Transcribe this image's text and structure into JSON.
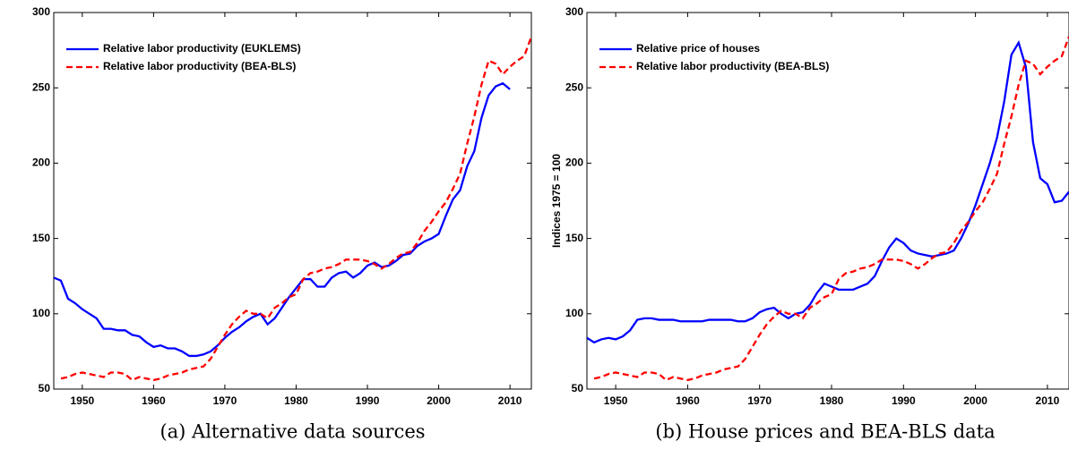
{
  "chart_data": [
    {
      "type": "line",
      "caption": "(a)  Alternative data sources",
      "x": [
        1946,
        1947,
        1948,
        1949,
        1950,
        1951,
        1952,
        1953,
        1954,
        1955,
        1956,
        1957,
        1958,
        1959,
        1960,
        1961,
        1962,
        1963,
        1964,
        1965,
        1966,
        1967,
        1968,
        1969,
        1970,
        1971,
        1972,
        1973,
        1974,
        1975,
        1976,
        1977,
        1978,
        1979,
        1980,
        1981,
        1982,
        1983,
        1984,
        1985,
        1986,
        1987,
        1988,
        1989,
        1990,
        1991,
        1992,
        1993,
        1994,
        1995,
        1996,
        1997,
        1998,
        1999,
        2000,
        2001,
        2002,
        2003,
        2004,
        2005,
        2006,
        2007,
        2008,
        2009,
        2010,
        2011,
        2012,
        2013
      ],
      "series": [
        {
          "name": "Relative labor productivity (EUKLEMS)",
          "color": "#0000ff",
          "dash": false,
          "values": [
            124,
            122,
            110,
            107,
            103,
            100,
            97,
            90,
            90,
            89,
            89,
            86,
            85,
            81,
            78,
            79,
            77,
            77,
            75,
            72,
            72,
            73,
            75,
            79,
            84,
            88,
            91,
            95,
            98,
            100,
            93,
            97,
            104,
            111,
            117,
            123,
            123,
            118,
            118,
            124,
            127,
            128,
            124,
            127,
            132,
            134,
            131,
            132,
            135,
            139,
            140,
            145,
            148,
            150,
            153,
            165,
            176,
            182,
            198,
            208,
            230,
            245,
            251,
            253,
            249,
            null,
            null,
            null
          ]
        },
        {
          "name": "Relative labor productivity (BEA-BLS)",
          "color": "#ff0000",
          "dash": true,
          "values": [
            null,
            57,
            58,
            60,
            61,
            60,
            59,
            58,
            61,
            61,
            60,
            56,
            58,
            57,
            56,
            57,
            59,
            60,
            61,
            63,
            64,
            65,
            70,
            78,
            86,
            93,
            98,
            102,
            100,
            100,
            97,
            104,
            107,
            111,
            113,
            123,
            127,
            128,
            130,
            131,
            133,
            136,
            136,
            136,
            135,
            133,
            130,
            133,
            137,
            140,
            141,
            147,
            155,
            161,
            168,
            174,
            183,
            193,
            213,
            231,
            252,
            268,
            266,
            259,
            264,
            268,
            271,
            284
          ]
        }
      ],
      "xlim": [
        1946,
        2013
      ],
      "ylim": [
        50,
        300
      ],
      "xticks": [
        1950,
        1960,
        1970,
        1980,
        1990,
        2000,
        2010
      ],
      "yticks": [
        50,
        100,
        150,
        200,
        250,
        300
      ]
    },
    {
      "type": "line",
      "caption": "(b)  House prices and BEA-BLS data",
      "ylabel": "Indices 1975 = 100",
      "x": [
        1946,
        1947,
        1948,
        1949,
        1950,
        1951,
        1952,
        1953,
        1954,
        1955,
        1956,
        1957,
        1958,
        1959,
        1960,
        1961,
        1962,
        1963,
        1964,
        1965,
        1966,
        1967,
        1968,
        1969,
        1970,
        1971,
        1972,
        1973,
        1974,
        1975,
        1976,
        1977,
        1978,
        1979,
        1980,
        1981,
        1982,
        1983,
        1984,
        1985,
        1986,
        1987,
        1988,
        1989,
        1990,
        1991,
        1992,
        1993,
        1994,
        1995,
        1996,
        1997,
        1998,
        1999,
        2000,
        2001,
        2002,
        2003,
        2004,
        2005,
        2006,
        2007,
        2008,
        2009,
        2010,
        2011,
        2012,
        2013
      ],
      "series": [
        {
          "name": "Relative price of houses",
          "color": "#0000ff",
          "dash": false,
          "values": [
            84,
            81,
            83,
            84,
            83,
            85,
            89,
            96,
            97,
            97,
            96,
            96,
            96,
            95,
            95,
            95,
            95,
            96,
            96,
            96,
            96,
            95,
            95,
            97,
            101,
            103,
            104,
            100,
            97,
            100,
            101,
            106,
            114,
            120,
            118,
            116,
            116,
            116,
            118,
            120,
            125,
            135,
            144,
            150,
            147,
            142,
            140,
            139,
            138,
            139,
            140,
            142,
            150,
            160,
            172,
            186,
            200,
            217,
            241,
            272,
            280,
            264,
            214,
            190,
            186,
            174,
            175,
            181
          ]
        },
        {
          "name": "Relative labor productivity (BEA-BLS)",
          "color": "#ff0000",
          "dash": true,
          "values": [
            null,
            57,
            58,
            60,
            61,
            60,
            59,
            58,
            61,
            61,
            60,
            56,
            58,
            57,
            56,
            57,
            59,
            60,
            61,
            63,
            64,
            65,
            70,
            78,
            86,
            93,
            98,
            102,
            100,
            100,
            97,
            104,
            107,
            111,
            113,
            123,
            127,
            128,
            130,
            131,
            133,
            136,
            136,
            136,
            135,
            133,
            130,
            133,
            137,
            140,
            141,
            147,
            155,
            161,
            168,
            174,
            183,
            193,
            213,
            231,
            252,
            268,
            266,
            259,
            264,
            268,
            271,
            284
          ]
        }
      ],
      "xlim": [
        1946,
        2013
      ],
      "ylim": [
        50,
        300
      ],
      "xticks": [
        1950,
        1960,
        1970,
        1980,
        1990,
        2000,
        2010
      ],
      "yticks": [
        50,
        100,
        150,
        200,
        250,
        300
      ]
    }
  ]
}
